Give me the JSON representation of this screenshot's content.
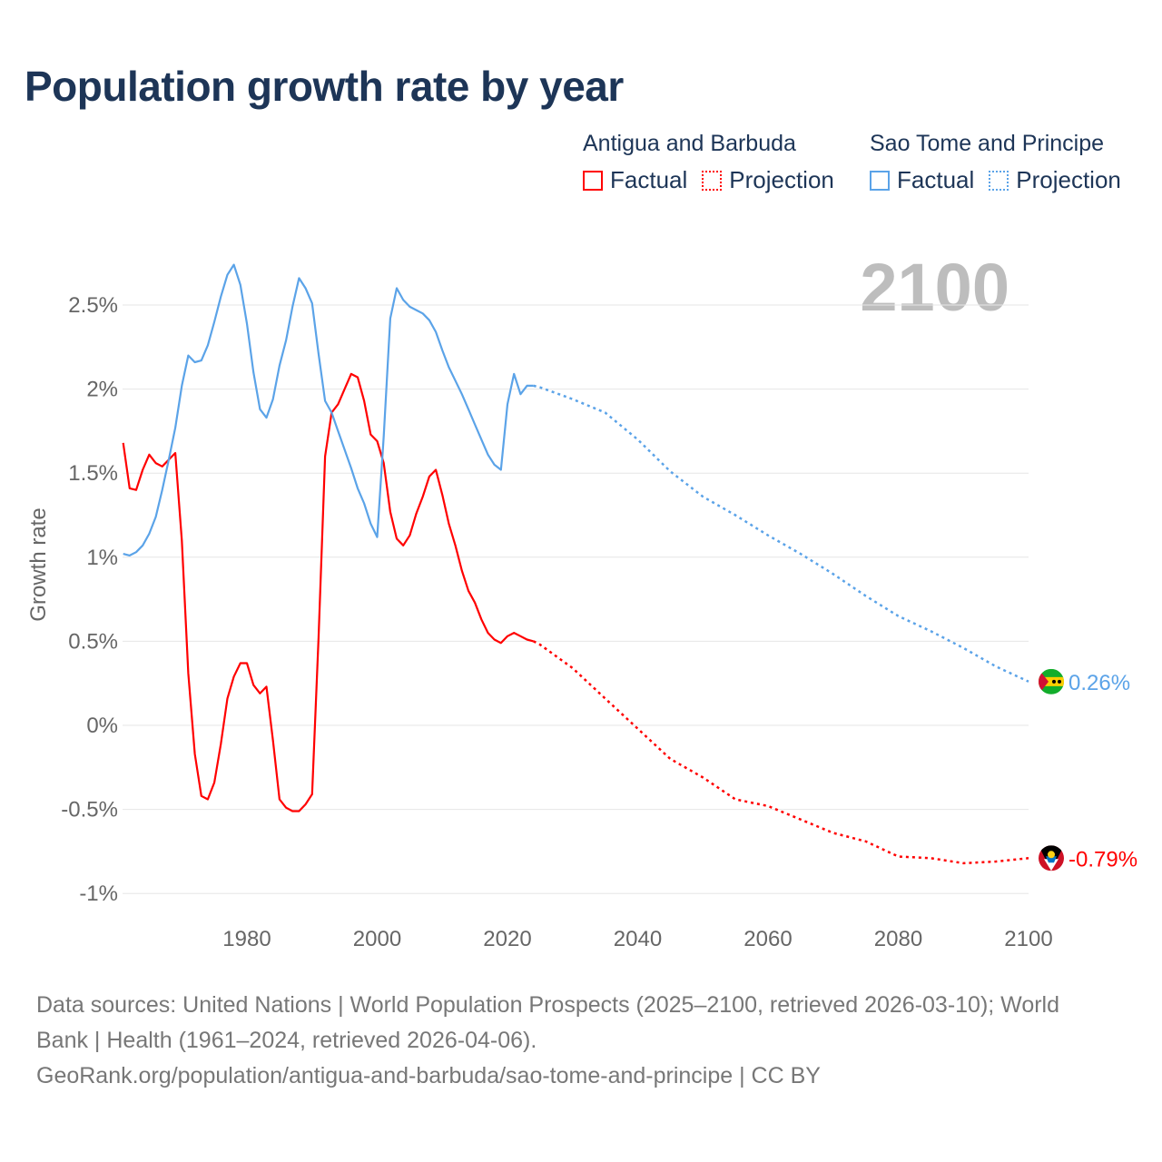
{
  "title": "Population growth rate by year",
  "legend": [
    {
      "country": "Antigua and Barbuda",
      "factual": "Factual",
      "projection": "Projection",
      "color": "#ff0000"
    },
    {
      "country": "Sao Tome and Principe",
      "factual": "Factual",
      "projection": "Projection",
      "color": "#5ba3e8"
    }
  ],
  "year_label": "2100",
  "source_lines": [
    "Data sources: United Nations | World Population Prospects (2025–2100, retrieved 2026-03-10); World",
    "Bank | Health (1961–2024, retrieved 2026-04-06).",
    "GeoRank.org/population/antigua-and-barbuda/sao-tome-and-principe | CC BY"
  ],
  "chart_data": {
    "type": "line",
    "title": "Population growth rate by year",
    "xlabel": "",
    "ylabel": "Growth rate",
    "xlim": [
      1961,
      2100
    ],
    "ylim": [
      -1.1,
      2.75
    ],
    "x_ticks": [
      1980,
      2000,
      2020,
      2040,
      2060,
      2080,
      2100
    ],
    "y_ticks": [
      {
        "value": 2.5,
        "label": "2.5%"
      },
      {
        "value": 2,
        "label": "2%"
      },
      {
        "value": 1.5,
        "label": "1.5%"
      },
      {
        "value": 1,
        "label": "1%"
      },
      {
        "value": 0.5,
        "label": "0.5%"
      },
      {
        "value": 0,
        "label": "0%"
      },
      {
        "value": -0.5,
        "label": "-0.5%"
      },
      {
        "value": -1,
        "label": "-1%"
      }
    ],
    "grid": true,
    "series": [
      {
        "name": "Antigua and Barbuda",
        "color": "#ff0000",
        "end_label": "-0.79%",
        "flag": "antigua-and-barbuda",
        "factual": {
          "x_start": 1961,
          "values": [
            1.68,
            1.41,
            1.4,
            1.52,
            1.61,
            1.56,
            1.54,
            1.58,
            1.62,
            1.1,
            0.31,
            -0.17,
            -0.42,
            -0.44,
            -0.34,
            -0.11,
            0.16,
            0.29,
            0.37,
            0.37,
            0.24,
            0.19,
            0.23,
            -0.09,
            -0.44,
            -0.49,
            -0.51,
            -0.51,
            -0.47,
            -0.41,
            0.52,
            1.6,
            1.86,
            1.91,
            2.0,
            2.09,
            2.07,
            1.93,
            1.73,
            1.69,
            1.56,
            1.27,
            1.11,
            1.07,
            1.13,
            1.26,
            1.36,
            1.48,
            1.52,
            1.37,
            1.2,
            1.07,
            0.92,
            0.8,
            0.73,
            0.63,
            0.55,
            0.51,
            0.49,
            0.53,
            0.55,
            0.53,
            0.51,
            0.5
          ]
        },
        "projection": {
          "x": [
            2024,
            2025,
            2030,
            2035,
            2040,
            2045,
            2050,
            2055,
            2060,
            2065,
            2070,
            2075,
            2080,
            2085,
            2090,
            2095,
            2100
          ],
          "values": [
            0.5,
            0.48,
            0.34,
            0.16,
            -0.02,
            -0.2,
            -0.31,
            -0.44,
            -0.48,
            -0.56,
            -0.64,
            -0.69,
            -0.78,
            -0.79,
            -0.82,
            -0.81,
            -0.79
          ]
        }
      },
      {
        "name": "Sao Tome and Principe",
        "color": "#5ba3e8",
        "end_label": "0.26%",
        "flag": "sao-tome-and-principe",
        "factual": {
          "x_start": 1961,
          "values": [
            1.02,
            1.01,
            1.03,
            1.07,
            1.14,
            1.24,
            1.4,
            1.58,
            1.77,
            2.02,
            2.2,
            2.16,
            2.17,
            2.26,
            2.4,
            2.55,
            2.68,
            2.74,
            2.62,
            2.39,
            2.1,
            1.88,
            1.83,
            1.94,
            2.14,
            2.29,
            2.49,
            2.66,
            2.6,
            2.51,
            2.21,
            1.93,
            1.86,
            1.75,
            1.64,
            1.53,
            1.41,
            1.32,
            1.2,
            1.12,
            1.72,
            2.42,
            2.6,
            2.53,
            2.49,
            2.47,
            2.45,
            2.41,
            2.34,
            2.23,
            2.13,
            2.05,
            1.97,
            1.88,
            1.79,
            1.7,
            1.61,
            1.55,
            1.52,
            1.91,
            2.09,
            1.97,
            2.02,
            2.02
          ]
        },
        "projection": {
          "x": [
            2024,
            2025,
            2030,
            2035,
            2040,
            2045,
            2050,
            2055,
            2060,
            2065,
            2070,
            2075,
            2080,
            2085,
            2090,
            2095,
            2100
          ],
          "values": [
            2.02,
            2.01,
            1.94,
            1.86,
            1.7,
            1.51,
            1.36,
            1.25,
            1.13,
            1.02,
            0.9,
            0.77,
            0.65,
            0.56,
            0.46,
            0.35,
            0.26
          ]
        }
      }
    ]
  }
}
